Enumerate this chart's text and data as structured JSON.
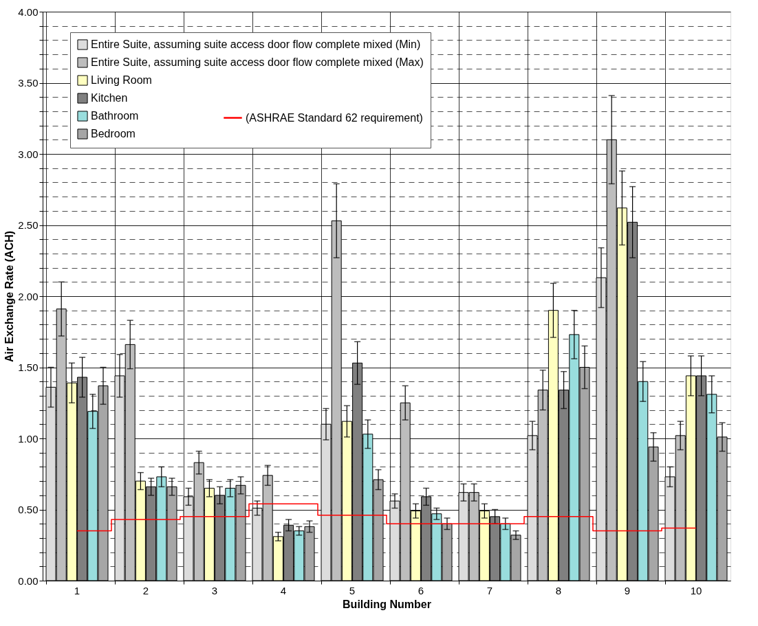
{
  "chart_data": {
    "type": "bar",
    "xlabel": "Building Number",
    "ylabel": "Air Exchange Rate (ACH)",
    "categories": [
      "1",
      "2",
      "3",
      "4",
      "5",
      "6",
      "7",
      "8",
      "9",
      "10"
    ],
    "series": [
      {
        "name": "Entire Suite, assuming suite access door flow complete mixed (Min)",
        "color": "#dcdcdc",
        "values": [
          1.36,
          1.44,
          0.59,
          0.51,
          1.1,
          0.56,
          0.62,
          1.02,
          2.13,
          0.73
        ],
        "errors": [
          0.14,
          0.15,
          0.06,
          0.05,
          0.11,
          0.05,
          0.06,
          0.1,
          0.21,
          0.07
        ]
      },
      {
        "name": "Entire Suite, assuming suite access door flow complete mixed (Max)",
        "color": "#bdbdbd",
        "values": [
          1.91,
          1.66,
          0.83,
          0.74,
          2.53,
          1.25,
          0.62,
          1.34,
          3.1,
          1.02
        ],
        "errors": [
          0.19,
          0.17,
          0.08,
          0.07,
          0.26,
          0.12,
          0.06,
          0.14,
          0.31,
          0.1
        ]
      },
      {
        "name": "Living Room",
        "color": "#ffffc0",
        "values": [
          1.39,
          0.7,
          0.65,
          0.31,
          1.12,
          0.49,
          0.49,
          1.9,
          2.62,
          1.44
        ],
        "errors": [
          0.14,
          0.06,
          0.06,
          0.03,
          0.11,
          0.05,
          0.05,
          0.19,
          0.26,
          0.14
        ]
      },
      {
        "name": "Kitchen",
        "color": "#808080",
        "values": [
          1.43,
          0.66,
          0.6,
          0.39,
          1.53,
          0.59,
          0.45,
          1.34,
          2.52,
          1.44
        ],
        "errors": [
          0.14,
          0.06,
          0.06,
          0.04,
          0.15,
          0.06,
          0.05,
          0.13,
          0.25,
          0.14
        ]
      },
      {
        "name": "Bathroom",
        "color": "#99dddd",
        "values": [
          1.19,
          0.73,
          0.65,
          0.35,
          1.03,
          0.47,
          0.4,
          1.73,
          1.4,
          1.31
        ],
        "errors": [
          0.12,
          0.07,
          0.06,
          0.03,
          0.1,
          0.04,
          0.04,
          0.17,
          0.14,
          0.13
        ]
      },
      {
        "name": "Bedroom",
        "color": "#a6a6a6",
        "values": [
          1.37,
          0.66,
          0.67,
          0.38,
          0.71,
          0.4,
          0.32,
          1.5,
          0.94,
          1.01
        ],
        "errors": [
          0.13,
          0.06,
          0.06,
          0.04,
          0.07,
          0.04,
          0.03,
          0.15,
          0.1,
          0.1
        ]
      },
      {
        "name": "(ASHRAE Standard 62 requirement)",
        "type": "step",
        "color": "#ff0000",
        "values": [
          0.35,
          0.43,
          0.45,
          0.54,
          0.46,
          0.4,
          0.4,
          0.45,
          0.35,
          0.37
        ]
      }
    ],
    "ylim": [
      0,
      4
    ],
    "yticks": [
      {
        "value": 0,
        "label": "0.00"
      },
      {
        "value": 0.1,
        "label": null
      },
      {
        "value": 0.2,
        "label": null
      },
      {
        "value": 0.3,
        "label": null
      },
      {
        "value": 0.4,
        "label": null
      },
      {
        "value": 0.5,
        "label": "0.50"
      },
      {
        "value": 0.6,
        "label": null
      },
      {
        "value": 0.7,
        "label": null
      },
      {
        "value": 0.8,
        "label": null
      },
      {
        "value": 0.9,
        "label": null
      },
      {
        "value": 1,
        "label": "1.00"
      },
      {
        "value": 1.1,
        "label": null
      },
      {
        "value": 1.2,
        "label": null
      },
      {
        "value": 1.3,
        "label": null
      },
      {
        "value": 1.4,
        "label": null
      },
      {
        "value": 1.5,
        "label": "1.50"
      },
      {
        "value": 1.6,
        "label": null
      },
      {
        "value": 1.7,
        "label": null
      },
      {
        "value": 1.8,
        "label": null
      },
      {
        "value": 1.9,
        "label": null
      },
      {
        "value": 2,
        "label": "2.00"
      },
      {
        "value": 2.1,
        "label": null
      },
      {
        "value": 2.2,
        "label": null
      },
      {
        "value": 2.3,
        "label": null
      },
      {
        "value": 2.4,
        "label": null
      },
      {
        "value": 2.5,
        "label": "2.50"
      },
      {
        "value": 2.6,
        "label": null
      },
      {
        "value": 2.7,
        "label": null
      },
      {
        "value": 2.8,
        "label": null
      },
      {
        "value": 2.9,
        "label": null
      },
      {
        "value": 3,
        "label": "3.00"
      },
      {
        "value": 3.1,
        "label": null
      },
      {
        "value": 3.2,
        "label": null
      },
      {
        "value": 3.3,
        "label": null
      },
      {
        "value": 3.4,
        "label": null
      },
      {
        "value": 3.5,
        "label": "3.50"
      },
      {
        "value": 3.6,
        "label": null
      },
      {
        "value": 3.7,
        "label": null
      },
      {
        "value": 3.8,
        "label": null
      },
      {
        "value": 3.9,
        "label": null
      },
      {
        "value": 4,
        "label": "4.00"
      }
    ],
    "grid": true,
    "legend": "top"
  }
}
